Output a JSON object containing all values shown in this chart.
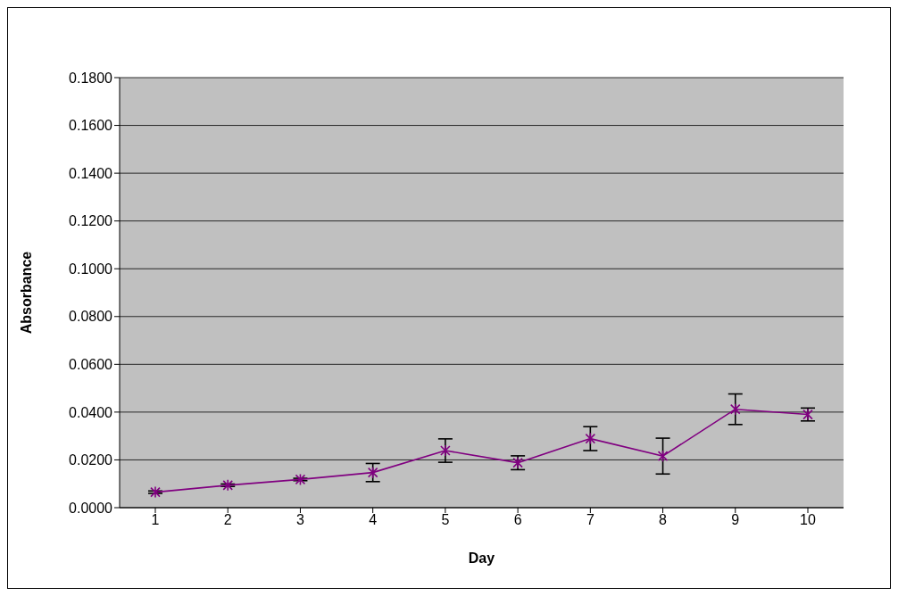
{
  "chart_data": {
    "type": "line",
    "xlabel": "Day",
    "ylabel": "Absorbance",
    "categories": [
      "1",
      "2",
      "3",
      "4",
      "5",
      "6",
      "7",
      "8",
      "9",
      "10"
    ],
    "series": [
      {
        "color": "#800080",
        "values": [
          0.0065,
          0.0094,
          0.0118,
          0.0147,
          0.0239,
          0.0188,
          0.0289,
          0.0216,
          0.0412,
          0.039
        ],
        "errors": [
          0.0005,
          0.0005,
          0.0005,
          0.0038,
          0.0049,
          0.0029,
          0.005,
          0.0075,
          0.0064,
          0.0027
        ]
      }
    ],
    "ylim": [
      0,
      0.18
    ],
    "yticks": [
      {
        "value": 0,
        "label": "0.0000"
      },
      {
        "value": 0.02,
        "label": "0.0200"
      },
      {
        "value": 0.04,
        "label": "0.0400"
      },
      {
        "value": 0.06,
        "label": "0.0600"
      },
      {
        "value": 0.08,
        "label": "0.0800"
      },
      {
        "value": 0.1,
        "label": "0.1000"
      },
      {
        "value": 0.12,
        "label": "0.1200"
      },
      {
        "value": 0.14,
        "label": "0.1400"
      },
      {
        "value": 0.16,
        "label": "0.1600"
      },
      {
        "value": 0.18,
        "label": "0.1800"
      }
    ],
    "grid": "y",
    "legend": false,
    "marker": "cross",
    "line_style": "solid"
  }
}
